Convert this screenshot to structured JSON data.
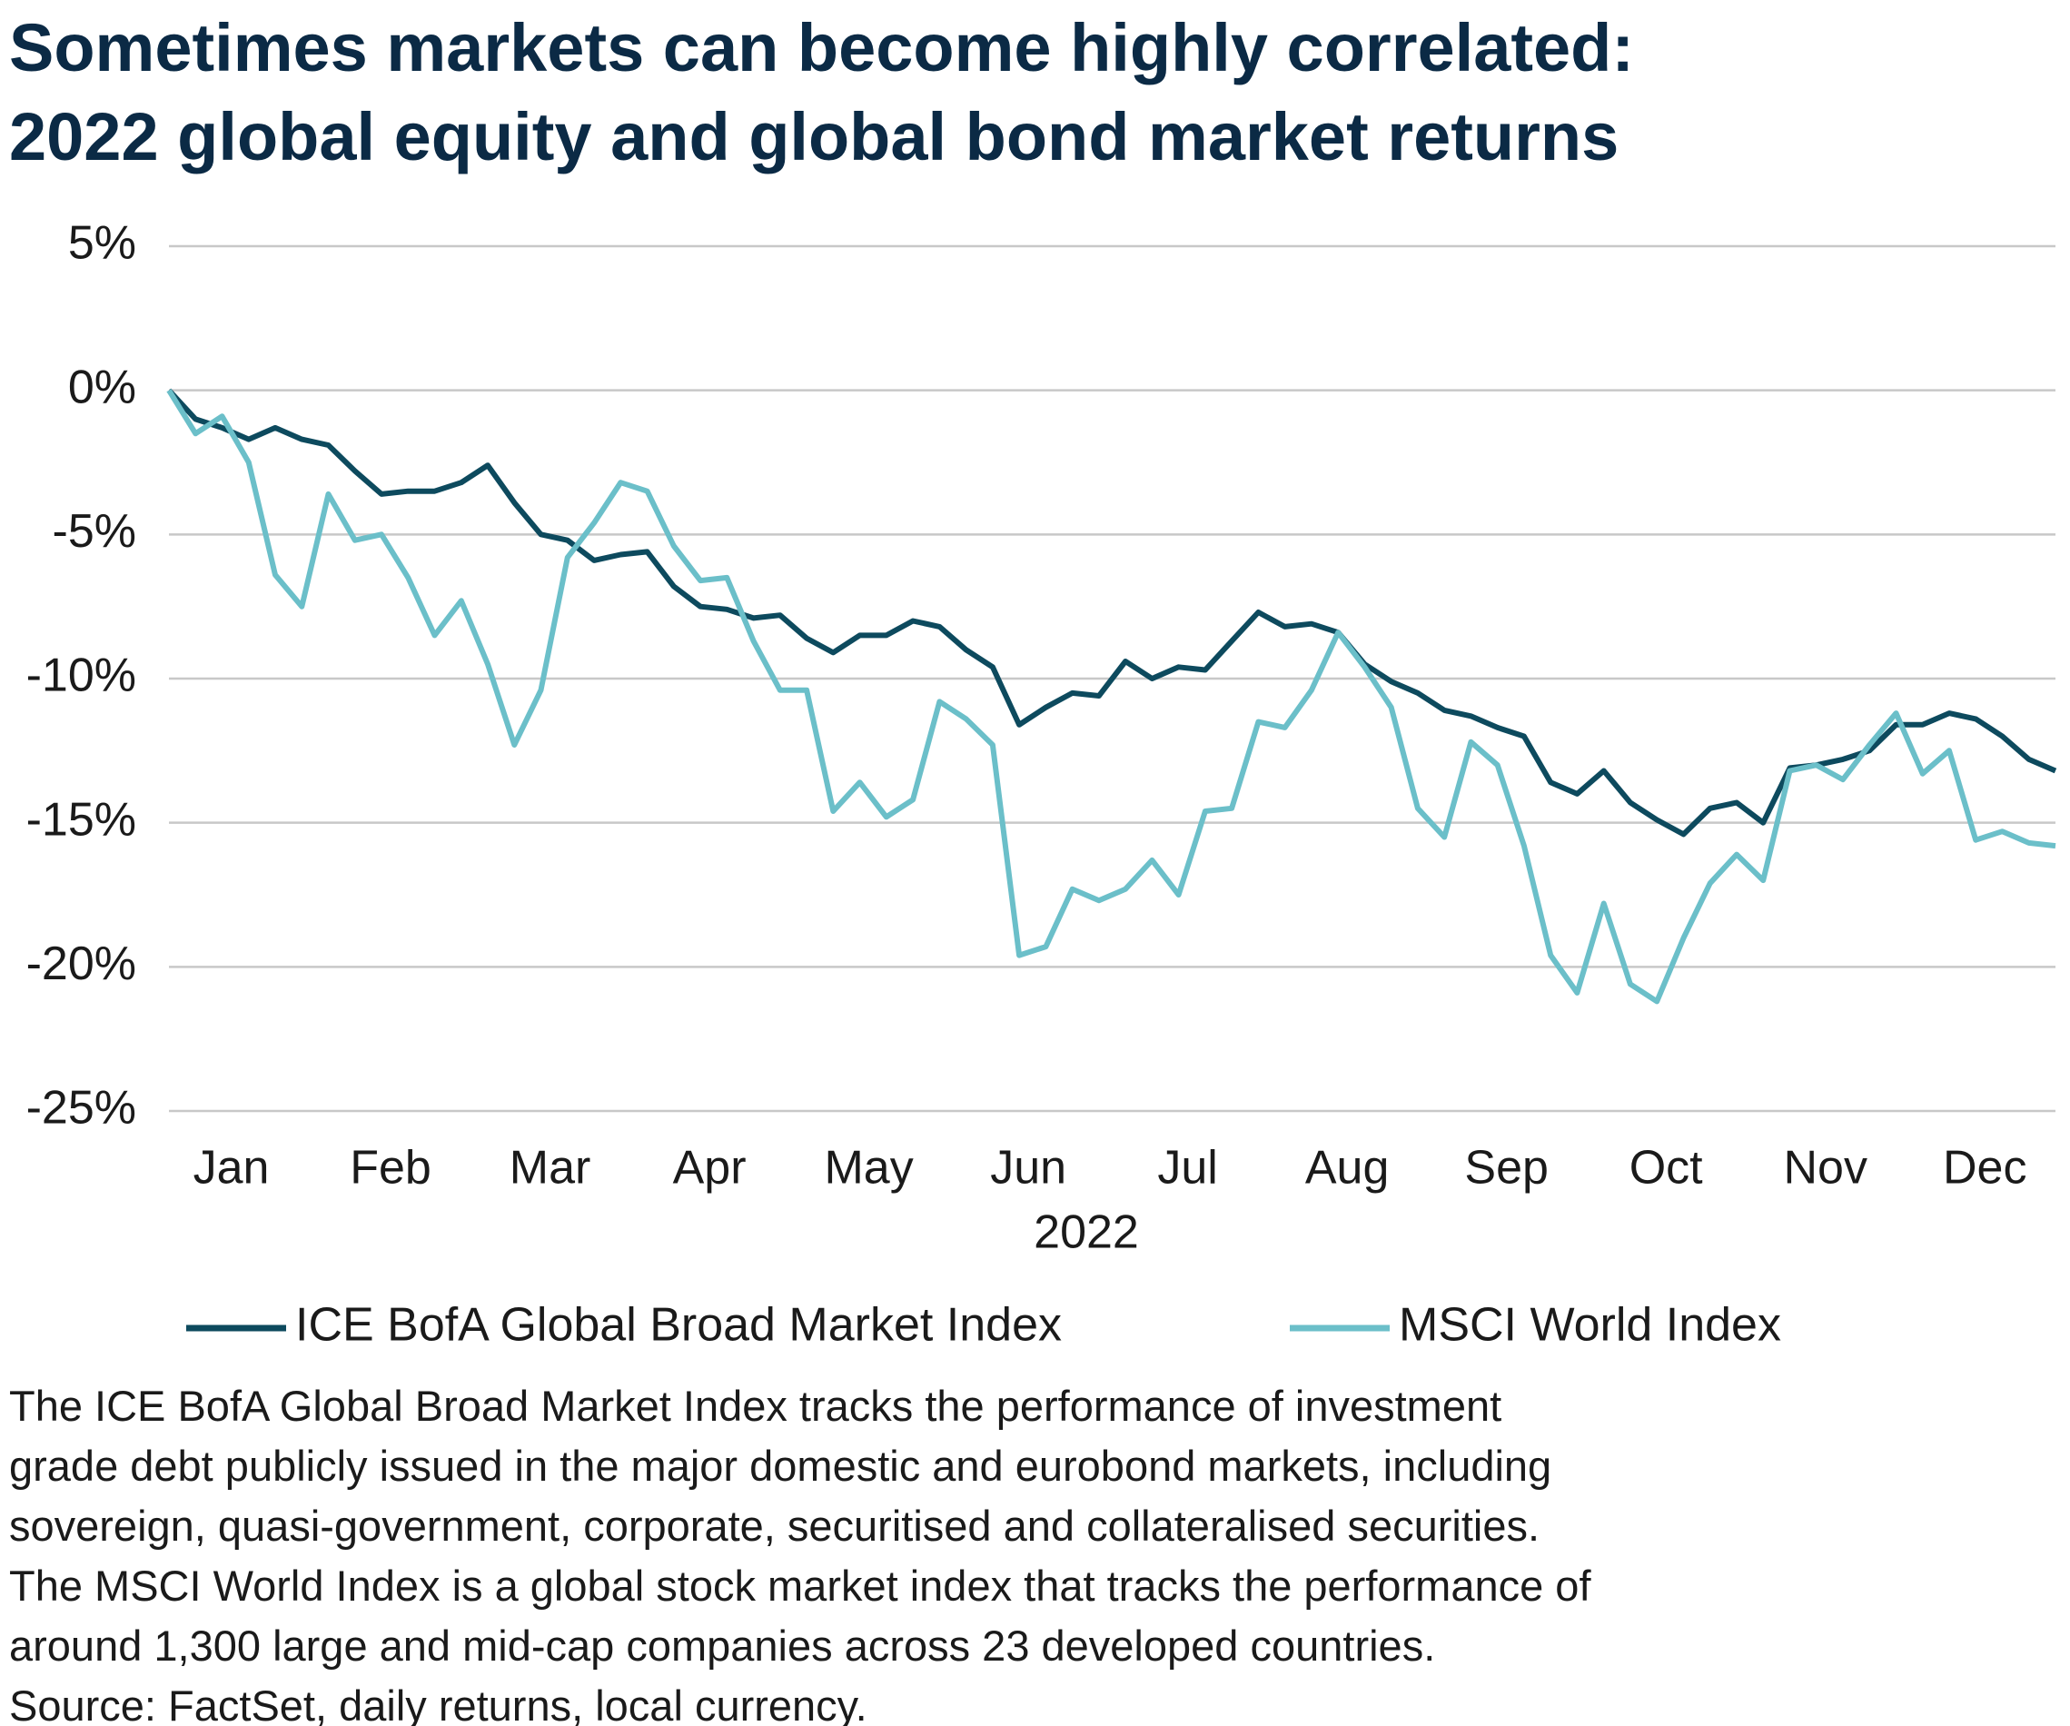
{
  "chart_data": {
    "type": "line",
    "title_lines": [
      "Sometimes markets can become highly correlated:",
      "2022 global equity and global bond market returns"
    ],
    "x_label": "2022",
    "categories": [
      null,
      null,
      "Jan",
      null,
      null,
      null,
      null,
      null,
      "Feb",
      null,
      null,
      null,
      null,
      null,
      "Mar",
      null,
      null,
      null,
      null,
      null,
      "Apr",
      null,
      null,
      null,
      null,
      null,
      "May",
      null,
      null,
      null,
      null,
      null,
      "Jun",
      null,
      null,
      null,
      null,
      null,
      "Jul",
      null,
      null,
      null,
      null,
      null,
      "Aug",
      null,
      null,
      null,
      null,
      null,
      "Sep",
      null,
      null,
      null,
      null,
      null,
      "Oct",
      null,
      null,
      null,
      null,
      null,
      "Nov",
      null,
      null,
      null,
      null,
      null,
      "Dec",
      null,
      null,
      null
    ],
    "series": [
      {
        "name": "ICE BofA Global Broad Market Index",
        "color": "#0d4a5e",
        "values": [
          0,
          -1.0,
          -1.3,
          -1.7,
          -1.3,
          -1.7,
          -1.9,
          -2.8,
          -3.6,
          -3.5,
          -3.5,
          -3.2,
          -2.6,
          -3.9,
          -5.0,
          -5.2,
          -5.9,
          -5.7,
          -5.6,
          -6.8,
          -7.5,
          -7.6,
          -7.9,
          -7.8,
          -8.6,
          -9.1,
          -8.5,
          -8.5,
          -8.0,
          -8.2,
          -9.0,
          -9.6,
          -11.6,
          -11.0,
          -10.5,
          -10.6,
          -9.4,
          -10.0,
          -9.6,
          -9.7,
          -8.7,
          -7.7,
          -8.2,
          -8.1,
          -8.4,
          -9.5,
          -10.1,
          -10.5,
          -11.1,
          -11.3,
          -11.7,
          -12.0,
          -13.6,
          -14.0,
          -13.2,
          -14.3,
          -14.9,
          -15.4,
          -14.5,
          -14.3,
          -15.0,
          -13.1,
          -13.0,
          -12.8,
          -12.5,
          -11.6,
          -11.6,
          -11.2,
          -11.4,
          -12.0,
          -12.8,
          -13.2
        ]
      },
      {
        "name": "MSCI World Index",
        "color": "#6bbfc9",
        "values": [
          0,
          -1.5,
          -0.9,
          -2.5,
          -6.4,
          -7.5,
          -3.6,
          -5.2,
          -5.0,
          -6.5,
          -8.5,
          -7.3,
          -9.5,
          -12.3,
          -10.4,
          -5.8,
          -4.6,
          -3.2,
          -3.5,
          -5.4,
          -6.6,
          -6.5,
          -8.7,
          -10.4,
          -10.4,
          -14.6,
          -13.6,
          -14.8,
          -14.2,
          -10.8,
          -11.4,
          -12.3,
          -19.6,
          -19.3,
          -17.3,
          -17.7,
          -17.3,
          -16.3,
          -17.5,
          -14.6,
          -14.5,
          -11.5,
          -11.7,
          -10.4,
          -8.4,
          -9.6,
          -11.0,
          -14.5,
          -15.5,
          -12.2,
          -13.0,
          -15.8,
          -19.6,
          -20.9,
          -17.8,
          -20.6,
          -21.2,
          -19.0,
          -17.1,
          -16.1,
          -17.0,
          -13.2,
          -13.0,
          -13.5,
          -12.3,
          -11.2,
          -13.3,
          -12.5,
          -15.6,
          -15.3,
          -15.7,
          -15.8
        ]
      }
    ],
    "ylim": [
      -25,
      5
    ],
    "yticks": [
      {
        "value": -25,
        "label": "-25%"
      },
      {
        "value": -20,
        "label": "-20%"
      },
      {
        "value": -15,
        "label": "-15%"
      },
      {
        "value": -10,
        "label": "-10%"
      },
      {
        "value": -5,
        "label": "-5%"
      },
      {
        "value": 0,
        "label": "0%"
      },
      {
        "value": 5,
        "label": "5%"
      }
    ],
    "grid": true,
    "footnote_lines": [
      "The ICE BofA Global Broad Market Index tracks the performance of investment",
      "grade debt publicly issued in the major domestic and eurobond markets, including",
      "sovereign, quasi-government, corporate, securitised and collateralised securities.",
      "The MSCI World Index is a global stock market index that tracks the performance of",
      "around 1,300 large and mid-cap companies across 23 developed countries.",
      "Source: FactSet, daily returns, local currency."
    ]
  }
}
